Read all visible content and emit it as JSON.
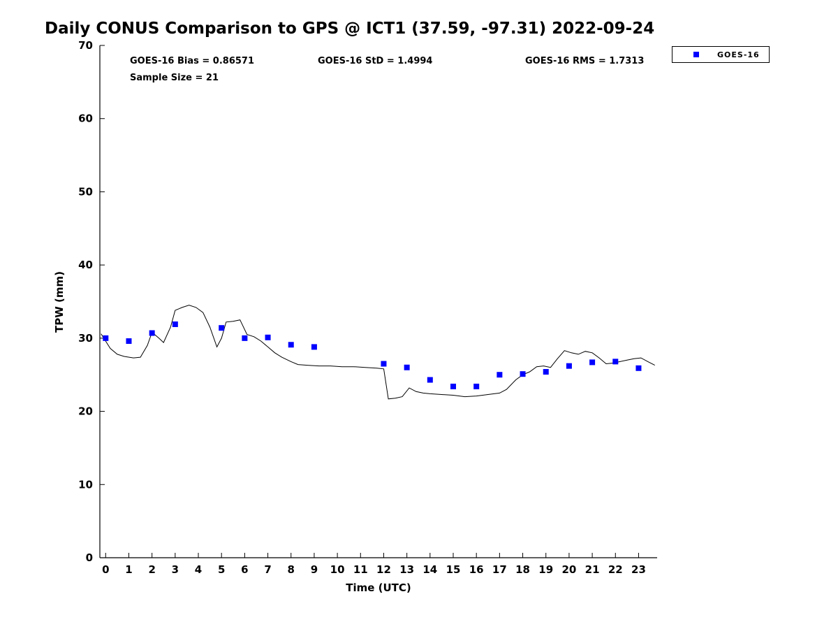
{
  "title": "Daily CONUS Comparison to GPS @ ICT1 (37.59, -97.31) 2022-09-24",
  "annotations": {
    "bias": "GOES-16 Bias = 0.86571",
    "sample_size": "Sample Size = 21",
    "std": "GOES-16 StD = 1.4994",
    "rms": "GOES-16 RMS = 1.7313"
  },
  "legend": {
    "entries": [
      {
        "label": "GOES-16",
        "marker": "square",
        "marker_color": "#0000ff"
      }
    ],
    "position": "top-right-outside"
  },
  "chart_data": {
    "type": "line",
    "title": "Daily CONUS Comparison to GPS @ ICT1 (37.59, -97.31) 2022-09-24",
    "xlabel": "Time (UTC)",
    "ylabel": "TPW (mm)",
    "xlim": [
      -0.25,
      23.8
    ],
    "ylim": [
      0,
      70
    ],
    "x_ticks": [
      0,
      1,
      2,
      3,
      4,
      5,
      6,
      7,
      8,
      9,
      10,
      11,
      12,
      13,
      14,
      15,
      16,
      17,
      18,
      19,
      20,
      21,
      22,
      23
    ],
    "y_ticks": [
      0,
      10,
      20,
      30,
      40,
      50,
      60,
      70
    ],
    "grid": false,
    "series": [
      {
        "name": "GPS",
        "style": "line",
        "color": "#000000",
        "points": [
          [
            -0.2,
            30.6
          ],
          [
            0.2,
            28.6
          ],
          [
            0.5,
            27.8
          ],
          [
            0.8,
            27.5
          ],
          [
            1.2,
            27.3
          ],
          [
            1.5,
            27.4
          ],
          [
            1.8,
            29.0
          ],
          [
            2.0,
            30.8
          ],
          [
            2.3,
            30.0
          ],
          [
            2.5,
            29.4
          ],
          [
            2.8,
            31.5
          ],
          [
            3.0,
            33.8
          ],
          [
            3.3,
            34.2
          ],
          [
            3.6,
            34.5
          ],
          [
            3.9,
            34.2
          ],
          [
            4.2,
            33.5
          ],
          [
            4.5,
            31.5
          ],
          [
            4.8,
            28.8
          ],
          [
            5.0,
            30.0
          ],
          [
            5.2,
            32.2
          ],
          [
            5.5,
            32.3
          ],
          [
            5.8,
            32.5
          ],
          [
            6.1,
            30.5
          ],
          [
            6.4,
            30.2
          ],
          [
            6.7,
            29.6
          ],
          [
            7.0,
            28.8
          ],
          [
            7.3,
            28.0
          ],
          [
            7.6,
            27.4
          ],
          [
            8.0,
            26.8
          ],
          [
            8.3,
            26.4
          ],
          [
            8.7,
            26.3
          ],
          [
            9.2,
            26.2
          ],
          [
            9.7,
            26.2
          ],
          [
            10.2,
            26.1
          ],
          [
            10.7,
            26.1
          ],
          [
            11.2,
            26.0
          ],
          [
            11.7,
            25.9
          ],
          [
            12.0,
            25.8
          ],
          [
            12.2,
            21.7
          ],
          [
            12.5,
            21.8
          ],
          [
            12.8,
            22.0
          ],
          [
            13.1,
            23.2
          ],
          [
            13.4,
            22.7
          ],
          [
            13.7,
            22.5
          ],
          [
            14.0,
            22.4
          ],
          [
            14.5,
            22.3
          ],
          [
            15.0,
            22.2
          ],
          [
            15.5,
            22.0
          ],
          [
            16.0,
            22.1
          ],
          [
            16.5,
            22.3
          ],
          [
            17.0,
            22.5
          ],
          [
            17.3,
            23.0
          ],
          [
            17.7,
            24.3
          ],
          [
            18.0,
            25.0
          ],
          [
            18.3,
            25.4
          ],
          [
            18.6,
            26.1
          ],
          [
            18.9,
            26.2
          ],
          [
            19.2,
            26.0
          ],
          [
            19.5,
            27.2
          ],
          [
            19.8,
            28.3
          ],
          [
            20.1,
            28.0
          ],
          [
            20.4,
            27.8
          ],
          [
            20.7,
            28.2
          ],
          [
            21.0,
            28.0
          ],
          [
            21.3,
            27.3
          ],
          [
            21.6,
            26.5
          ],
          [
            21.9,
            26.6
          ],
          [
            22.2,
            26.8
          ],
          [
            22.5,
            27.0
          ],
          [
            22.8,
            27.2
          ],
          [
            23.1,
            27.3
          ],
          [
            23.4,
            26.8
          ],
          [
            23.7,
            26.3
          ]
        ]
      },
      {
        "name": "GOES-16",
        "style": "scatter-square",
        "color": "#0000ff",
        "points": [
          [
            0,
            30.0
          ],
          [
            1,
            29.6
          ],
          [
            2,
            30.7
          ],
          [
            3,
            31.9
          ],
          [
            5,
            31.4
          ],
          [
            6,
            30.0
          ],
          [
            7,
            30.1
          ],
          [
            8,
            29.1
          ],
          [
            9,
            28.8
          ],
          [
            12,
            26.5
          ],
          [
            13,
            26.0
          ],
          [
            14,
            24.3
          ],
          [
            15,
            23.4
          ],
          [
            16,
            23.4
          ],
          [
            17,
            25.0
          ],
          [
            18,
            25.1
          ],
          [
            19,
            25.4
          ],
          [
            20,
            26.2
          ],
          [
            21,
            26.7
          ],
          [
            22,
            26.8
          ],
          [
            23,
            25.9
          ]
        ]
      }
    ]
  }
}
